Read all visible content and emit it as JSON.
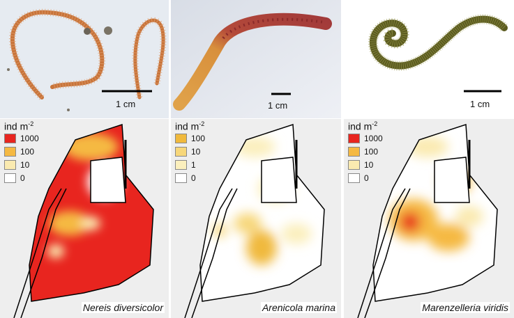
{
  "photos": [
    {
      "scale_label": "1 cm",
      "icon": "nereis-worm-photo"
    },
    {
      "scale_label": "1 cm",
      "icon": "arenicola-worm-photo"
    },
    {
      "scale_label": "1 cm",
      "icon": "marenzelleria-worm-photo"
    }
  ],
  "maps": [
    {
      "legend_title_base": "ind m",
      "legend_title_exp": "-2",
      "legend": [
        {
          "label": "1000",
          "color": "#e8251f"
        },
        {
          "label": "100",
          "color": "#f5b942"
        },
        {
          "label": "10",
          "color": "#faeab0"
        },
        {
          "label": "0",
          "color": "#ffffff"
        }
      ],
      "species": "Nereis diversicolor"
    },
    {
      "legend_title_base": "ind m",
      "legend_title_exp": "-2",
      "legend": [
        {
          "label": "100",
          "color": "#f0b93c"
        },
        {
          "label": "10",
          "color": "#f7d77a"
        },
        {
          "label": "1",
          "color": "#fbefbd"
        },
        {
          "label": "0",
          "color": "#ffffff"
        }
      ],
      "species": "Arenicola marina"
    },
    {
      "legend_title_base": "ind m",
      "legend_title_exp": "-2",
      "legend": [
        {
          "label": "1000",
          "color": "#e8251f"
        },
        {
          "label": "100",
          "color": "#f5b942"
        },
        {
          "label": "10",
          "color": "#faeab0"
        },
        {
          "label": "0",
          "color": "#ffffff"
        }
      ],
      "species": "Marenzelleria viridis"
    }
  ]
}
